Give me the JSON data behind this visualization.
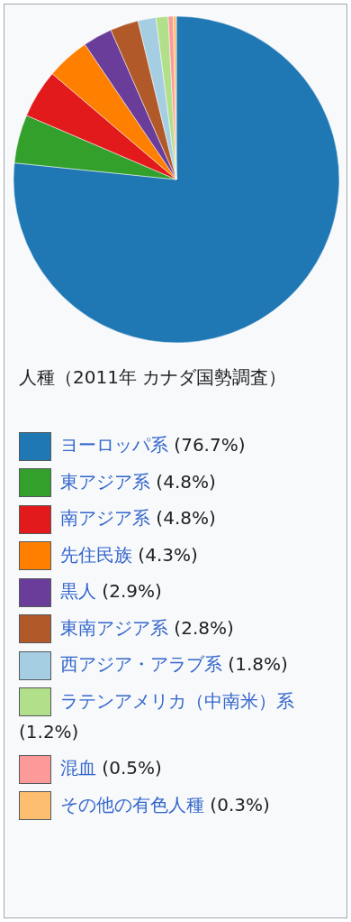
{
  "chart_data": {
    "type": "pie",
    "title": "人種（2011年 カナダ国勢調査）",
    "categories": [
      "ヨーロッパ系",
      "東アジア系",
      "南アジア系",
      "先住民族",
      "黒人",
      "東南アジア系",
      "西アジア・アラブ系",
      "ラテンアメリカ（中南米）系",
      "混血",
      "その他の有色人種"
    ],
    "values": [
      76.7,
      4.8,
      4.8,
      4.3,
      2.9,
      2.8,
      1.8,
      1.2,
      0.5,
      0.3
    ],
    "value_labels": [
      "(76.7%)",
      "(4.8%)",
      "(4.8%)",
      "(4.3%)",
      "(2.9%)",
      "(2.8%)",
      "(1.8%)",
      "(1.2%)",
      "(0.5%)",
      "(0.3%)"
    ],
    "colors": [
      "#1f78b4",
      "#33a02c",
      "#e31a1c",
      "#ff7f00",
      "#6a3d9a",
      "#b15928",
      "#a6cee3",
      "#b2df8a",
      "#fb9a99",
      "#fdbf6f"
    ],
    "legend": "bottom"
  }
}
